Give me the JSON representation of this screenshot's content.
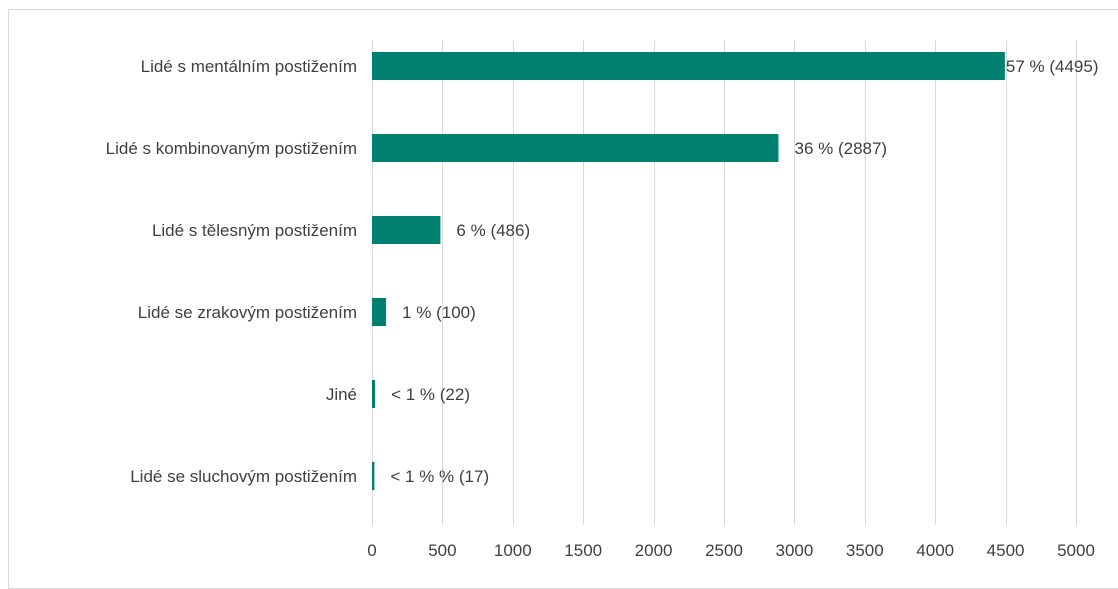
{
  "chart_data": {
    "type": "bar",
    "orientation": "horizontal",
    "title": "",
    "xlabel": "",
    "ylabel": "",
    "categories": [
      "Lidé s mentálním postižením",
      "Lidé s kombinovaným postižením",
      "Lidé s tělesným postižením",
      "Lidé se zrakovým postižením",
      "Jiné",
      "Lidé se sluchovým postižením"
    ],
    "values": [
      4495,
      2887,
      486,
      100,
      22,
      17
    ],
    "data_labels": [
      "57 % (4495)",
      "36 % (2887)",
      "6 % (486)",
      "1 % (100)",
      "< 1 % (22)",
      "< 1 % % (17)"
    ],
    "xlim": [
      0,
      5000
    ],
    "xticks": [
      0,
      500,
      1000,
      1500,
      2000,
      2500,
      3000,
      3500,
      4000,
      4500,
      5000
    ],
    "grid": "vertical",
    "legend": "none",
    "colors": {
      "bar": "#00806f",
      "grid": "#d9d9d9",
      "text": "#404040"
    }
  }
}
